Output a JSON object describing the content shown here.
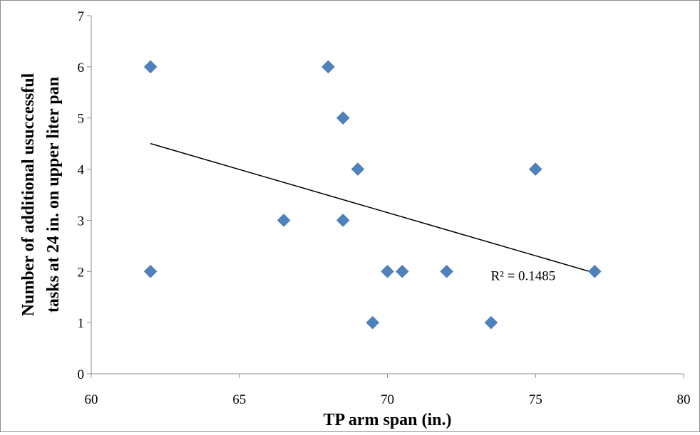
{
  "chart_data": {
    "type": "scatter",
    "title": "",
    "xlabel": "TP arm span (in.)",
    "ylabel_lines": [
      "Number of additional usuccessful",
      "tasks at 24 in. on upper liter pan"
    ],
    "xlim": [
      60,
      80
    ],
    "ylim": [
      0,
      7
    ],
    "x_ticks": [
      "60",
      "65",
      "70",
      "75",
      "80"
    ],
    "y_ticks": [
      "0",
      "1",
      "2",
      "3",
      "4",
      "5",
      "6",
      "7"
    ],
    "grid": false,
    "legend": "none",
    "marker": "diamond",
    "marker_color": "#4f81bd",
    "points": [
      {
        "x": 62,
        "y": 6
      },
      {
        "x": 62,
        "y": 2
      },
      {
        "x": 66.5,
        "y": 3
      },
      {
        "x": 68,
        "y": 6
      },
      {
        "x": 68.5,
        "y": 5
      },
      {
        "x": 68.5,
        "y": 3
      },
      {
        "x": 69,
        "y": 4
      },
      {
        "x": 69.5,
        "y": 1
      },
      {
        "x": 70,
        "y": 2
      },
      {
        "x": 70.5,
        "y": 2
      },
      {
        "x": 72,
        "y": 2
      },
      {
        "x": 73.5,
        "y": 1
      },
      {
        "x": 75,
        "y": 4
      },
      {
        "x": 77,
        "y": 2
      }
    ],
    "trendline": {
      "type": "linear",
      "color": "#000000",
      "x": [
        62,
        77
      ],
      "y": [
        4.5,
        1.97
      ]
    },
    "annotation": {
      "text": "R² = 0.1485",
      "x": 74.5,
      "y": 1.93
    }
  }
}
